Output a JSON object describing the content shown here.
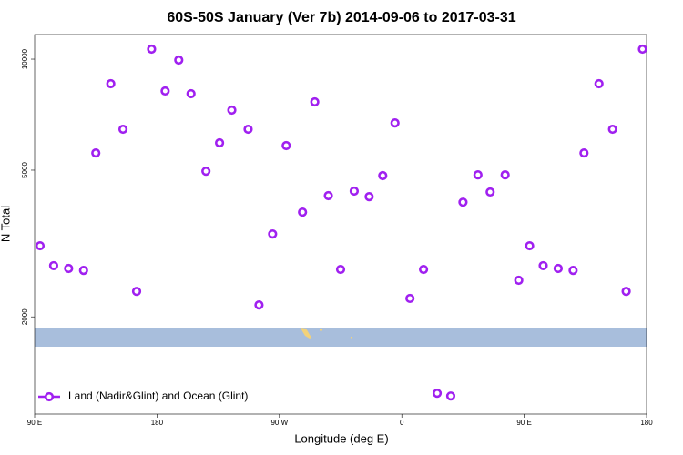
{
  "chart_data": {
    "type": "scatter",
    "title": "60S-50S January (Ver 7b)   2014-09-06 to 2017-03-31",
    "x_label": "Longitude (deg E)",
    "y_label": "N Total",
    "x": [
      94,
      104,
      115,
      126,
      135,
      146,
      155,
      165,
      176,
      186,
      196,
      205,
      216,
      226,
      235,
      247,
      255,
      265,
      275,
      287,
      296,
      306,
      315,
      325,
      336,
      346,
      355,
      366,
      376,
      386,
      396,
      405,
      416,
      425,
      436,
      446,
      454,
      464,
      475,
      486,
      494,
      505,
      515,
      525,
      537
    ],
    "series": [
      {
        "name": "Land (Nadir&Glint) and Ocean (Glint)",
        "color": "#a020f0",
        "values": [
          3118,
          2754,
          2706,
          2674,
          5567,
          8577,
          6455,
          2345,
          10645,
          8199,
          9943,
          8057,
          4966,
          5930,
          7276,
          6455,
          2154,
          3356,
          5828,
          3847,
          7656,
          4264,
          2690,
          4387,
          4236,
          4832,
          6715,
          2244,
          2690,
          1241,
          1220,
          4093,
          4856,
          4363,
          4856,
          2513,
          3118,
          2754,
          2706,
          2674,
          5567,
          8577,
          6455,
          2345,
          10645
        ]
      }
    ],
    "xlim": [
      90,
      540
    ],
    "xticks": [
      {
        "value": 90,
        "label": "90 E"
      },
      {
        "value": 180,
        "label": "180"
      },
      {
        "value": 270,
        "label": "90 W"
      },
      {
        "value": 360,
        "label": "0"
      },
      {
        "value": 450,
        "label": "90 E"
      },
      {
        "value": 540,
        "label": "180"
      }
    ],
    "ylim": [
      1090,
      11660
    ],
    "yticks": [
      2000,
      5000,
      10000
    ],
    "log_y": true,
    "legend": "bottom-left"
  }
}
